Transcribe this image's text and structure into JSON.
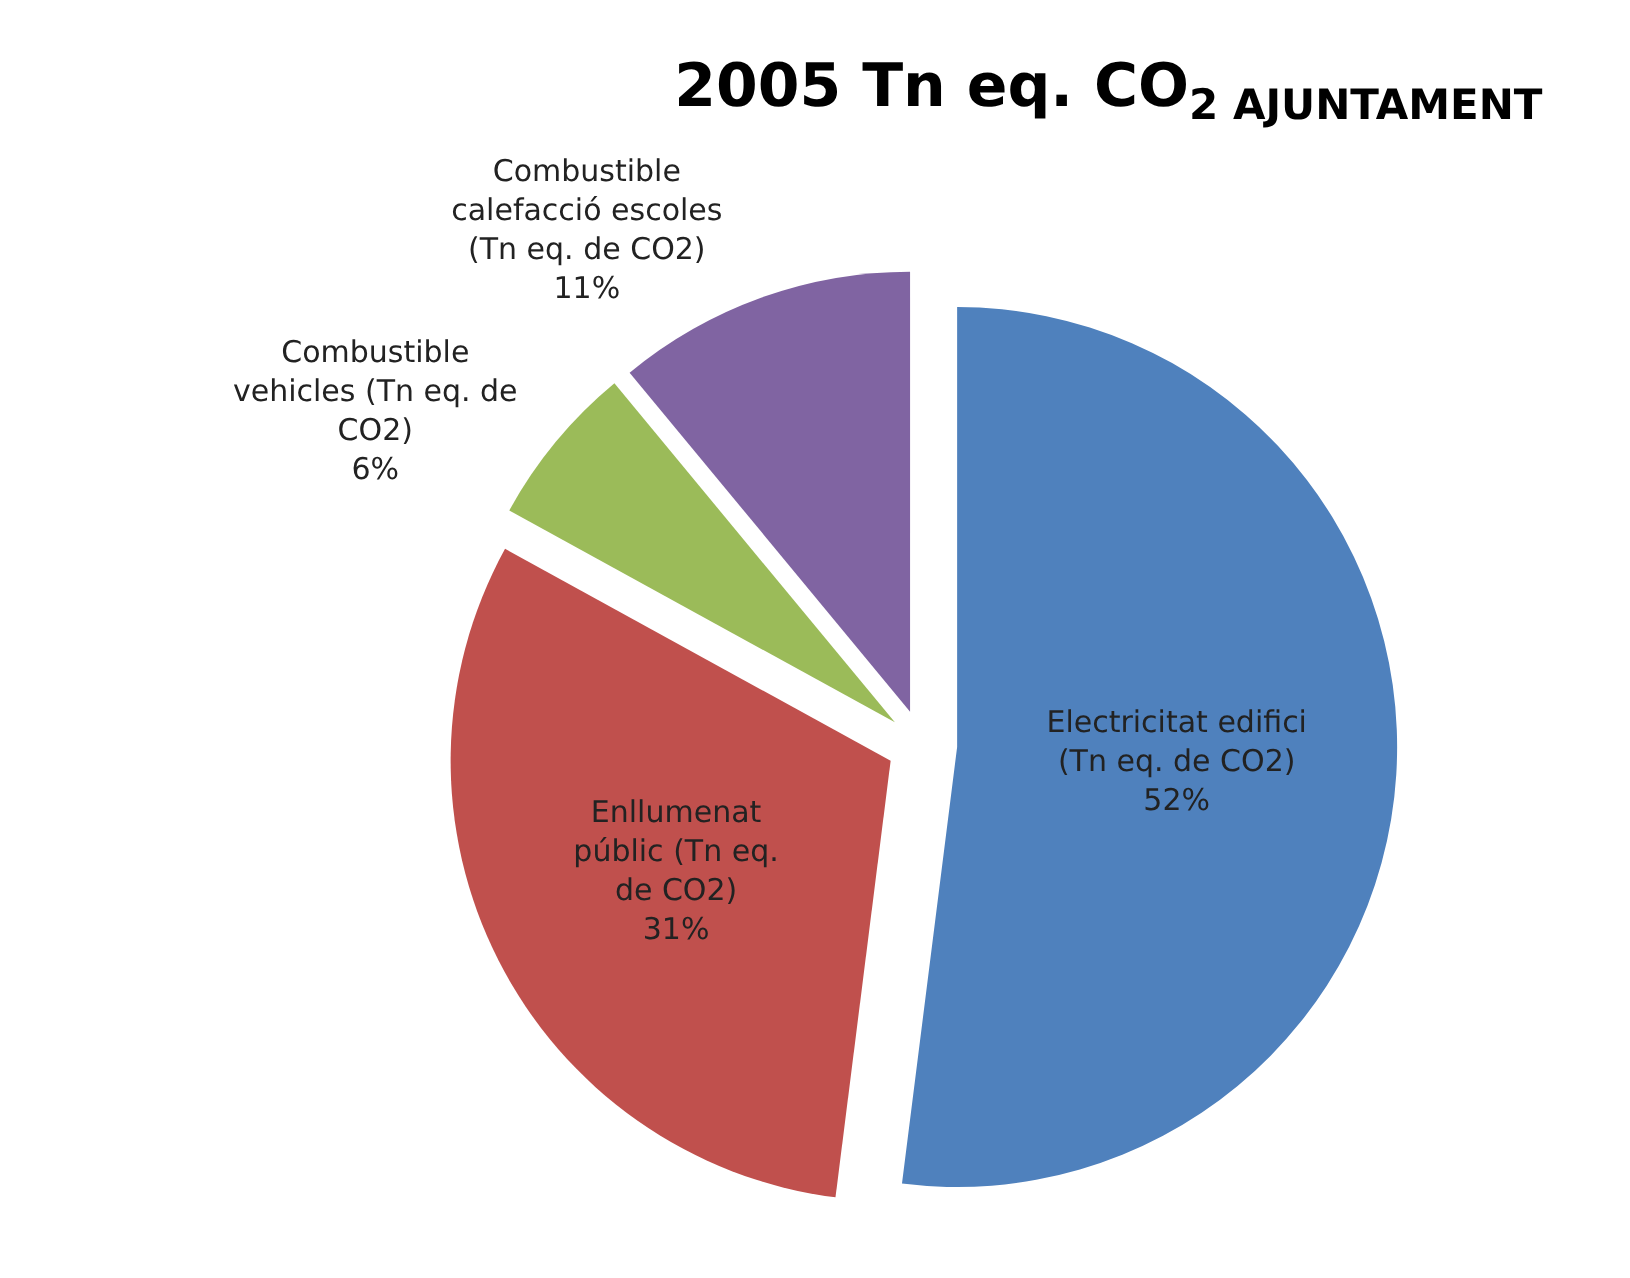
{
  "chart_data": {
    "type": "pie",
    "title": "2005 Tn eq. CO$_{2 AJUNTAMENT}$",
    "categories": [
      "Electricitat edifici\n(Tn eq. de CO2)",
      "Enllumenat\npúblic (Tn eq.\nde CO2)",
      "Combustible\nvehicles (Tn eq. de\nCO2)",
      "Combustible\ncalefacció escoles\n(Tn eq. de CO2)"
    ],
    "values": [
      52,
      31,
      6,
      11
    ],
    "colors": [
      "#4f81bd",
      "#c0504d",
      "#9bbb59",
      "#8064a2"
    ],
    "value_labels": [
      "52%",
      "31%",
      "6%",
      "11%"
    ],
    "legend": false
  }
}
